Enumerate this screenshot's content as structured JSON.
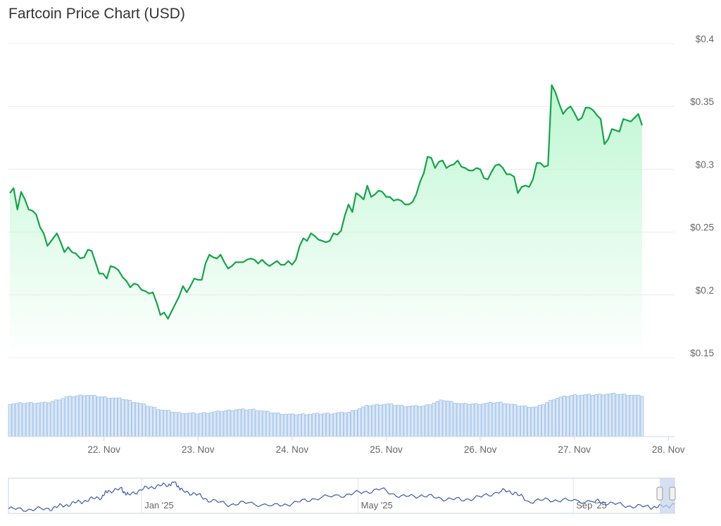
{
  "title": "Fartcoin Price Chart (USD)",
  "chart_data": {
    "type": "line",
    "title": "Fartcoin Price Chart (USD)",
    "ylim": [
      0.15,
      0.4
    ],
    "y_ticks": [
      "$0.4",
      "$0.35",
      "$0.3",
      "$0.25",
      "$0.2",
      "$0.15"
    ],
    "y_tick_values": [
      0.4,
      0.35,
      0.3,
      0.25,
      0.2,
      0.15
    ],
    "x_ticks": [
      "22. Nov",
      "23. Nov",
      "24. Nov",
      "25. Nov",
      "26. Nov",
      "27. Nov",
      "28. Nov"
    ],
    "x_tick_values": [
      1,
      2,
      3,
      4,
      5,
      6,
      7
    ],
    "xlim": [
      0,
      7.05
    ],
    "grid": true,
    "colors": {
      "line": "#16a34a",
      "fill": "#bbf7d0",
      "volume": "#9dbfe6",
      "navigator": "#3b5ca8"
    },
    "price": [
      [
        0.0,
        0.281
      ],
      [
        0.04,
        0.285
      ],
      [
        0.08,
        0.268
      ],
      [
        0.12,
        0.282
      ],
      [
        0.16,
        0.276
      ],
      [
        0.2,
        0.268
      ],
      [
        0.24,
        0.267
      ],
      [
        0.28,
        0.264
      ],
      [
        0.32,
        0.254
      ],
      [
        0.36,
        0.249
      ],
      [
        0.4,
        0.239
      ],
      [
        0.44,
        0.243
      ],
      [
        0.5,
        0.249
      ],
      [
        0.54,
        0.242
      ],
      [
        0.58,
        0.234
      ],
      [
        0.62,
        0.238
      ],
      [
        0.66,
        0.234
      ],
      [
        0.7,
        0.233
      ],
      [
        0.75,
        0.229
      ],
      [
        0.79,
        0.23
      ],
      [
        0.83,
        0.236
      ],
      [
        0.87,
        0.235
      ],
      [
        0.91,
        0.226
      ],
      [
        0.95,
        0.217
      ],
      [
        0.99,
        0.217
      ],
      [
        1.03,
        0.213
      ],
      [
        1.07,
        0.223
      ],
      [
        1.11,
        0.222
      ],
      [
        1.15,
        0.22
      ],
      [
        1.2,
        0.214
      ],
      [
        1.24,
        0.211
      ],
      [
        1.28,
        0.206
      ],
      [
        1.32,
        0.209
      ],
      [
        1.36,
        0.208
      ],
      [
        1.4,
        0.204
      ],
      [
        1.44,
        0.203
      ],
      [
        1.48,
        0.201
      ],
      [
        1.52,
        0.202
      ],
      [
        1.56,
        0.194
      ],
      [
        1.6,
        0.184
      ],
      [
        1.64,
        0.186
      ],
      [
        1.68,
        0.181
      ],
      [
        1.72,
        0.187
      ],
      [
        1.76,
        0.193
      ],
      [
        1.8,
        0.199
      ],
      [
        1.84,
        0.207
      ],
      [
        1.88,
        0.202
      ],
      [
        1.92,
        0.207
      ],
      [
        1.96,
        0.213
      ],
      [
        2.0,
        0.212
      ],
      [
        2.04,
        0.212
      ],
      [
        2.08,
        0.225
      ],
      [
        2.12,
        0.232
      ],
      [
        2.16,
        0.23
      ],
      [
        2.2,
        0.229
      ],
      [
        2.24,
        0.232
      ],
      [
        2.28,
        0.226
      ],
      [
        2.32,
        0.221
      ],
      [
        2.36,
        0.223
      ],
      [
        2.4,
        0.226
      ],
      [
        2.44,
        0.226
      ],
      [
        2.48,
        0.226
      ],
      [
        2.52,
        0.228
      ],
      [
        2.56,
        0.229
      ],
      [
        2.6,
        0.228
      ],
      [
        2.64,
        0.225
      ],
      [
        2.68,
        0.228
      ],
      [
        2.72,
        0.225
      ],
      [
        2.76,
        0.223
      ],
      [
        2.8,
        0.225
      ],
      [
        2.84,
        0.227
      ],
      [
        2.88,
        0.224
      ],
      [
        2.92,
        0.224
      ],
      [
        2.96,
        0.227
      ],
      [
        3.0,
        0.224
      ],
      [
        3.04,
        0.228
      ],
      [
        3.08,
        0.239
      ],
      [
        3.12,
        0.245
      ],
      [
        3.16,
        0.243
      ],
      [
        3.2,
        0.249
      ],
      [
        3.24,
        0.247
      ],
      [
        3.28,
        0.244
      ],
      [
        3.32,
        0.243
      ],
      [
        3.36,
        0.242
      ],
      [
        3.4,
        0.243
      ],
      [
        3.44,
        0.249
      ],
      [
        3.48,
        0.248
      ],
      [
        3.52,
        0.251
      ],
      [
        3.56,
        0.263
      ],
      [
        3.6,
        0.272
      ],
      [
        3.64,
        0.266
      ],
      [
        3.68,
        0.281
      ],
      [
        3.72,
        0.279
      ],
      [
        3.76,
        0.276
      ],
      [
        3.8,
        0.287
      ],
      [
        3.84,
        0.278
      ],
      [
        3.88,
        0.28
      ],
      [
        3.92,
        0.283
      ],
      [
        3.96,
        0.282
      ],
      [
        4.0,
        0.278
      ],
      [
        4.04,
        0.278
      ],
      [
        4.08,
        0.275
      ],
      [
        4.12,
        0.276
      ],
      [
        4.16,
        0.275
      ],
      [
        4.2,
        0.272
      ],
      [
        4.24,
        0.272
      ],
      [
        4.28,
        0.274
      ],
      [
        4.32,
        0.28
      ],
      [
        4.36,
        0.29
      ],
      [
        4.4,
        0.297
      ],
      [
        4.44,
        0.31
      ],
      [
        4.48,
        0.309
      ],
      [
        4.52,
        0.301
      ],
      [
        4.56,
        0.306
      ],
      [
        4.6,
        0.307
      ],
      [
        4.64,
        0.301
      ],
      [
        4.68,
        0.303
      ],
      [
        4.72,
        0.304
      ],
      [
        4.76,
        0.307
      ],
      [
        4.8,
        0.302
      ],
      [
        4.84,
        0.301
      ],
      [
        4.88,
        0.299
      ],
      [
        4.92,
        0.299
      ],
      [
        4.96,
        0.301
      ],
      [
        5.0,
        0.3
      ],
      [
        5.04,
        0.293
      ],
      [
        5.08,
        0.292
      ],
      [
        5.12,
        0.298
      ],
      [
        5.16,
        0.303
      ],
      [
        5.2,
        0.304
      ],
      [
        5.24,
        0.301
      ],
      [
        5.28,
        0.296
      ],
      [
        5.32,
        0.296
      ],
      [
        5.36,
        0.294
      ],
      [
        5.4,
        0.281
      ],
      [
        5.44,
        0.286
      ],
      [
        5.48,
        0.287
      ],
      [
        5.52,
        0.286
      ],
      [
        5.56,
        0.292
      ],
      [
        5.6,
        0.305
      ],
      [
        5.64,
        0.305
      ],
      [
        5.68,
        0.302
      ],
      [
        5.72,
        0.303
      ],
      [
        5.76,
        0.367
      ],
      [
        5.8,
        0.361
      ],
      [
        5.84,
        0.352
      ],
      [
        5.88,
        0.344
      ],
      [
        5.92,
        0.348
      ],
      [
        5.96,
        0.35
      ],
      [
        6.0,
        0.345
      ],
      [
        6.04,
        0.339
      ],
      [
        6.08,
        0.341
      ],
      [
        6.12,
        0.349
      ],
      [
        6.16,
        0.349
      ],
      [
        6.2,
        0.347
      ],
      [
        6.24,
        0.343
      ],
      [
        6.28,
        0.34
      ],
      [
        6.32,
        0.32
      ],
      [
        6.36,
        0.324
      ],
      [
        6.4,
        0.332
      ],
      [
        6.44,
        0.331
      ],
      [
        6.48,
        0.33
      ],
      [
        6.52,
        0.34
      ],
      [
        6.56,
        0.339
      ],
      [
        6.6,
        0.338
      ],
      [
        6.64,
        0.341
      ],
      [
        6.68,
        0.344
      ],
      [
        6.72,
        0.335
      ]
    ],
    "volume": [
      [
        0.0,
        0.58
      ],
      [
        0.2,
        0.6
      ],
      [
        0.4,
        0.6
      ],
      [
        0.6,
        0.7
      ],
      [
        0.8,
        0.74
      ],
      [
        1.0,
        0.7
      ],
      [
        1.2,
        0.67
      ],
      [
        1.4,
        0.58
      ],
      [
        1.6,
        0.48
      ],
      [
        1.8,
        0.42
      ],
      [
        2.0,
        0.41
      ],
      [
        2.2,
        0.44
      ],
      [
        2.4,
        0.48
      ],
      [
        2.6,
        0.48
      ],
      [
        2.8,
        0.42
      ],
      [
        3.0,
        0.39
      ],
      [
        3.2,
        0.4
      ],
      [
        3.4,
        0.41
      ],
      [
        3.6,
        0.43
      ],
      [
        3.8,
        0.55
      ],
      [
        4.0,
        0.58
      ],
      [
        4.2,
        0.54
      ],
      [
        4.4,
        0.54
      ],
      [
        4.6,
        0.65
      ],
      [
        4.8,
        0.58
      ],
      [
        5.0,
        0.58
      ],
      [
        5.2,
        0.61
      ],
      [
        5.4,
        0.55
      ],
      [
        5.6,
        0.52
      ],
      [
        5.8,
        0.68
      ],
      [
        6.0,
        0.74
      ],
      [
        6.2,
        0.74
      ],
      [
        6.4,
        0.76
      ],
      [
        6.6,
        0.74
      ],
      [
        6.7,
        0.72
      ]
    ],
    "navigator": {
      "x_ticks": [
        "Jan '25",
        "May '25",
        "Sep '25"
      ],
      "x_tick_positions": [
        0.2,
        0.525,
        0.848
      ],
      "series": [
        [
          0.0,
          0.1
        ],
        [
          0.03,
          0.08
        ],
        [
          0.06,
          0.1
        ],
        [
          0.08,
          0.2
        ],
        [
          0.1,
          0.3
        ],
        [
          0.12,
          0.4
        ],
        [
          0.14,
          0.5
        ],
        [
          0.15,
          0.7
        ],
        [
          0.17,
          0.75
        ],
        [
          0.18,
          0.55
        ],
        [
          0.2,
          0.75
        ],
        [
          0.22,
          0.85
        ],
        [
          0.24,
          0.9
        ],
        [
          0.25,
          1.0
        ],
        [
          0.26,
          0.7
        ],
        [
          0.28,
          0.6
        ],
        [
          0.3,
          0.4
        ],
        [
          0.33,
          0.25
        ],
        [
          0.36,
          0.3
        ],
        [
          0.4,
          0.2
        ],
        [
          0.43,
          0.3
        ],
        [
          0.46,
          0.45
        ],
        [
          0.5,
          0.55
        ],
        [
          0.53,
          0.65
        ],
        [
          0.56,
          0.75
        ],
        [
          0.59,
          0.5
        ],
        [
          0.62,
          0.55
        ],
        [
          0.65,
          0.45
        ],
        [
          0.68,
          0.4
        ],
        [
          0.71,
          0.5
        ],
        [
          0.74,
          0.7
        ],
        [
          0.76,
          0.65
        ],
        [
          0.78,
          0.35
        ],
        [
          0.81,
          0.4
        ],
        [
          0.84,
          0.38
        ],
        [
          0.88,
          0.35
        ],
        [
          0.9,
          0.3
        ],
        [
          0.93,
          0.2
        ],
        [
          0.96,
          0.17
        ],
        [
          0.98,
          0.17
        ],
        [
          1.0,
          0.25
        ]
      ]
    }
  }
}
